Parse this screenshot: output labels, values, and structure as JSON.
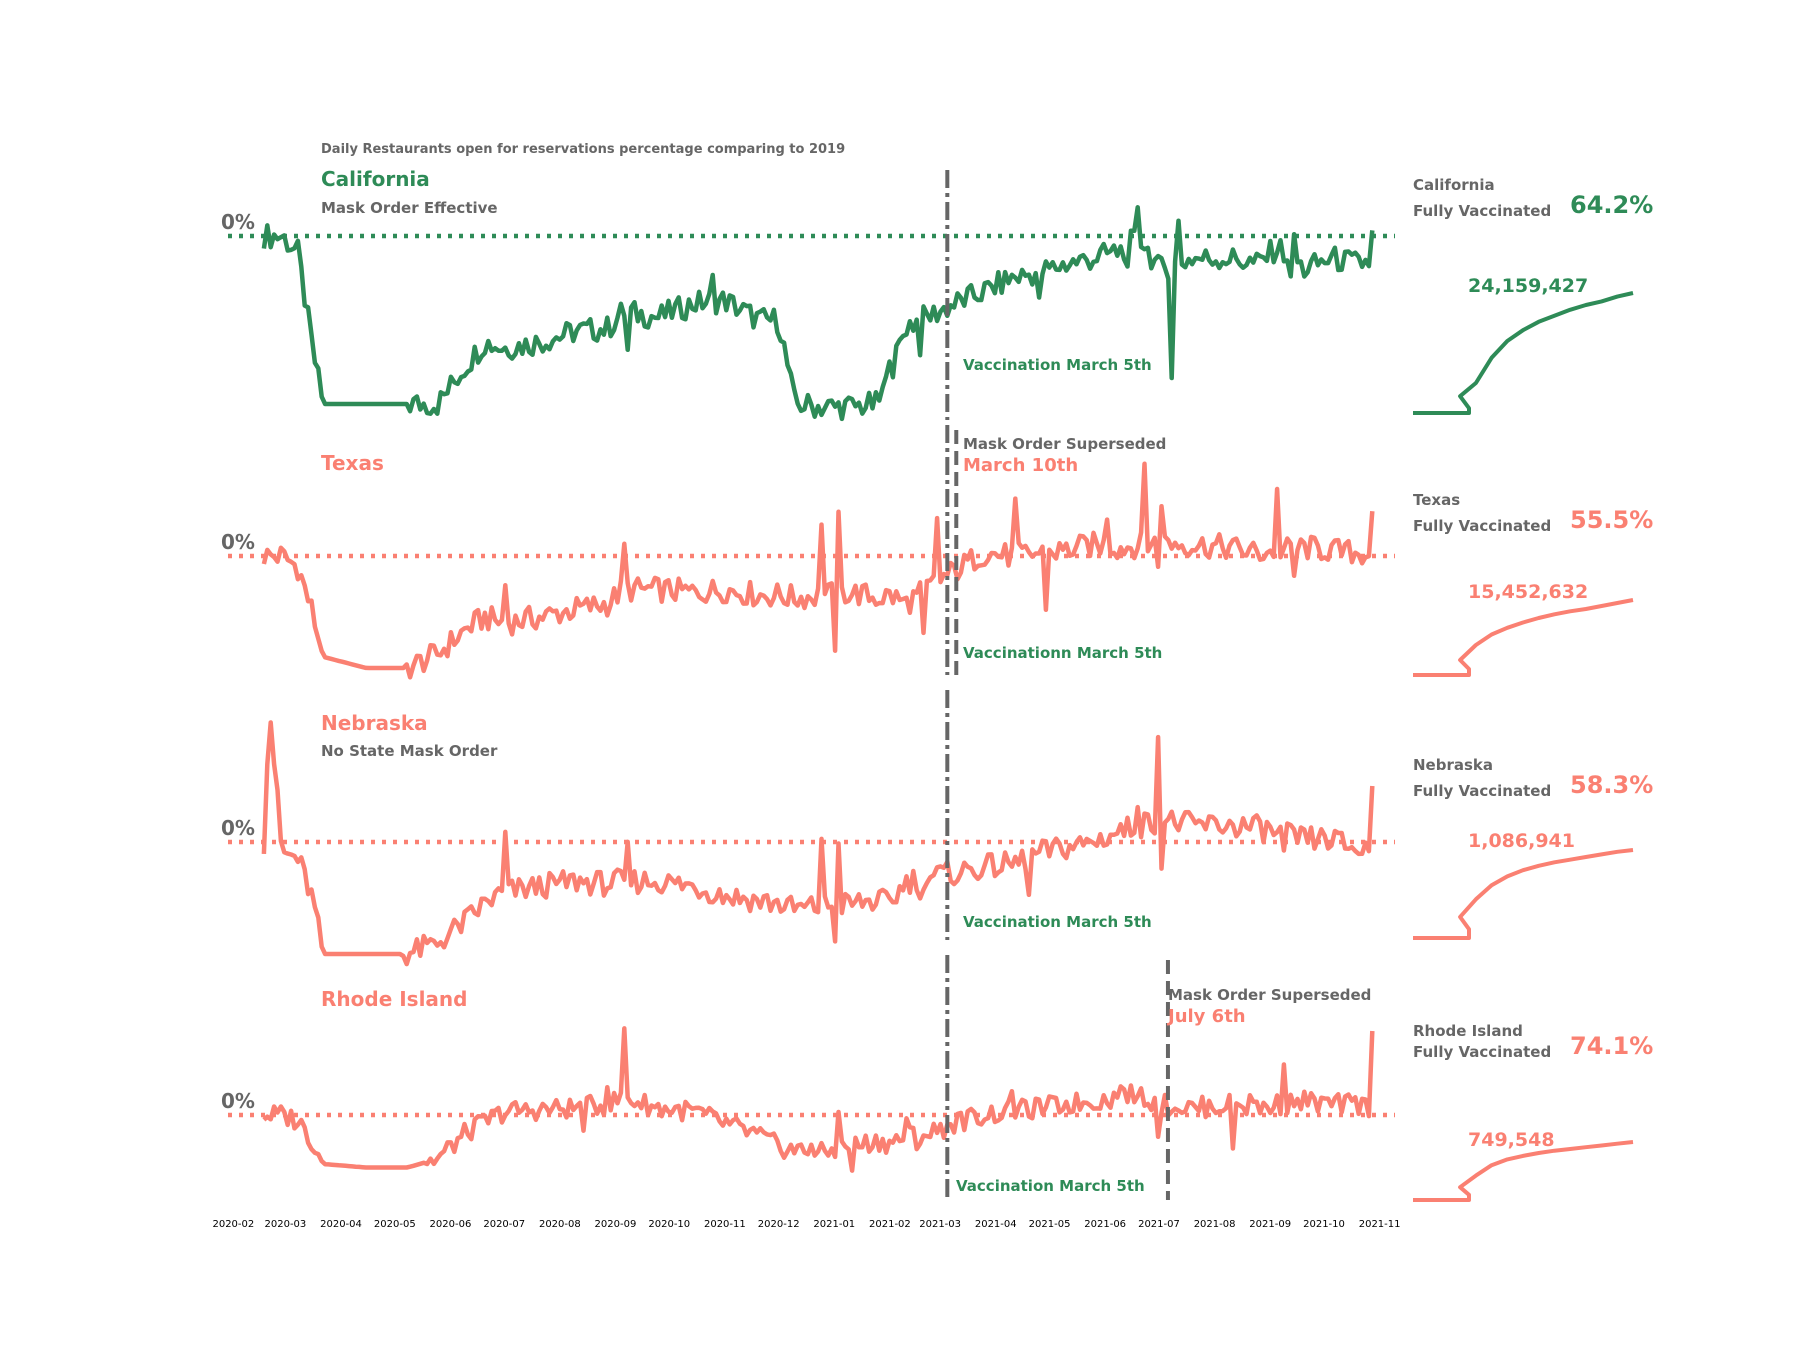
{
  "figure": {
    "title": "Daily Restaurants open for reservations percentage comparing to 2019",
    "colors": {
      "green": "#2e8b57",
      "salmon": "#fa8072",
      "gray": "#666666"
    },
    "zero_label": "0%",
    "x_ticks": [
      "2020-02",
      "2020-03",
      "2020-04",
      "2020-05",
      "2020-06",
      "2020-07",
      "2020-08",
      "2020-09",
      "2020-10",
      "2020-11",
      "2020-12",
      "2021-01",
      "2021-02",
      "2021-03",
      "2021-04",
      "2021-05",
      "2021-06",
      "2021-07",
      "2021-08",
      "2021-09",
      "2021-10",
      "2021-11"
    ]
  },
  "panels": [
    {
      "state": "California",
      "subtitle": "Mask Order Effective",
      "color": "green",
      "vaccination_label": "Vaccination March 5th",
      "superseded_label": "",
      "superseded_date": "",
      "vaccinated_label": "Fully Vaccinated",
      "vaccinated_pct": "64.2%",
      "vaccinated_count": "24,159,427"
    },
    {
      "state": "Texas",
      "subtitle": "",
      "color": "salmon",
      "vaccination_label": "Vaccinationn March 5th",
      "superseded_label": "Mask Order Superseded",
      "superseded_date": "March 10th",
      "vaccinated_label": "Fully Vaccinated",
      "vaccinated_pct": "55.5%",
      "vaccinated_count": "15,452,632"
    },
    {
      "state": "Nebraska",
      "subtitle": "No State Mask Order",
      "color": "salmon",
      "vaccination_label": "Vaccination March 5th",
      "superseded_label": "",
      "superseded_date": "",
      "vaccinated_label": "Fully Vaccinated",
      "vaccinated_pct": "58.3%",
      "vaccinated_count": "1,086,941"
    },
    {
      "state": "Rhode Island",
      "subtitle": "",
      "color": "salmon",
      "vaccination_label": "Vaccination March 5th",
      "superseded_label": "Mask Order Superseded",
      "superseded_date": "July 6th",
      "vaccinated_label": "Fully Vaccinated",
      "vaccinated_pct": "74.1%",
      "vaccinated_count": "749,548"
    }
  ],
  "chart_data": [
    {
      "type": "line",
      "title": "California",
      "ylabel": "0%",
      "vline_dates": [
        "2021-03-05"
      ],
      "series": [
        {
          "x": [
            "2020-02-18",
            "2020-02-28",
            "2020-03-08",
            "2020-03-16",
            "2020-03-22",
            "2020-04-15",
            "2020-05-08",
            "2020-05-25",
            "2020-06-10",
            "2020-06-20",
            "2020-07-01",
            "2020-07-20",
            "2020-08-10",
            "2020-08-28",
            "2020-09-05",
            "2020-09-25",
            "2020-10-15",
            "2020-11-01",
            "2020-11-20",
            "2020-12-01",
            "2020-12-10",
            "2020-12-25",
            "2021-01-10",
            "2021-01-25",
            "2021-02-01",
            "2021-02-10",
            "2021-02-25",
            "2021-03-10",
            "2021-03-25",
            "2021-04-10",
            "2021-04-25",
            "2021-05-10",
            "2021-05-25",
            "2021-06-10",
            "2021-06-20",
            "2021-07-01",
            "2021-07-20",
            "2021-08-10",
            "2021-08-25",
            "2021-09-05",
            "2021-09-20",
            "2021-10-05",
            "2021-10-20",
            "2021-10-27",
            "2021-10-29"
          ],
          "y": [
            0,
            0,
            -6,
            -40,
            -60,
            -60,
            -60,
            -60,
            -46,
            -38,
            -40,
            -38,
            -34,
            -33,
            -27,
            -29,
            -24,
            -23,
            -30,
            -30,
            -60,
            -61,
            -61,
            -60,
            -50,
            -32,
            -28,
            -24,
            -20,
            -15,
            -13,
            -10,
            -8,
            -5,
            0,
            -12,
            -8,
            -8,
            -10,
            -4,
            -12,
            -8,
            -10,
            -9,
            2
          ]
        }
      ]
    },
    {
      "type": "line",
      "title": "Texas",
      "ylabel": "0%",
      "vline_dates": [
        "2021-03-05",
        "2021-03-10"
      ],
      "series": [
        {
          "x": [
            "2020-02-18",
            "2020-02-28",
            "2020-03-08",
            "2020-03-16",
            "2020-03-22",
            "2020-04-15",
            "2020-05-08",
            "2020-05-25",
            "2020-06-10",
            "2020-06-20",
            "2020-07-01",
            "2020-07-20",
            "2020-08-10",
            "2020-08-28",
            "2020-09-05",
            "2020-09-25",
            "2020-10-15",
            "2020-11-01",
            "2020-11-20",
            "2020-12-01",
            "2020-12-10",
            "2020-12-25",
            "2021-01-10",
            "2021-01-25",
            "2021-02-01",
            "2021-02-10",
            "2021-02-25",
            "2021-03-10",
            "2021-03-25",
            "2021-04-10",
            "2021-04-25",
            "2021-05-10",
            "2021-05-25",
            "2021-06-10",
            "2021-06-20",
            "2021-07-01",
            "2021-07-20",
            "2021-08-10",
            "2021-08-25",
            "2021-09-05",
            "2021-09-20",
            "2021-10-05",
            "2021-10-20",
            "2021-10-27",
            "2021-10-29"
          ],
          "y": [
            0,
            0,
            -4,
            -20,
            -36,
            -40,
            -40,
            -35,
            -26,
            -22,
            -24,
            -22,
            -19,
            -17,
            -12,
            -12,
            -13,
            -12,
            -14,
            -14,
            -15,
            -14,
            -13,
            -15,
            -14,
            -17,
            -10,
            -5,
            1,
            0,
            1,
            2,
            4,
            3,
            4,
            5,
            4,
            3,
            1,
            2,
            3,
            2,
            1,
            1,
            16
          ]
        }
      ]
    },
    {
      "type": "line",
      "title": "Nebraska",
      "ylabel": "0%",
      "vline_dates": [
        "2021-03-05"
      ],
      "series": [
        {
          "x": [
            "2020-02-18",
            "2020-02-21",
            "2020-02-28",
            "2020-03-08",
            "2020-03-16",
            "2020-03-22",
            "2020-04-15",
            "2020-05-08",
            "2020-05-25",
            "2020-06-10",
            "2020-06-20",
            "2020-07-01",
            "2020-07-20",
            "2020-08-10",
            "2020-08-28",
            "2020-09-05",
            "2020-09-25",
            "2020-10-15",
            "2020-11-01",
            "2020-11-20",
            "2020-12-01",
            "2020-12-10",
            "2020-12-25",
            "2021-01-10",
            "2021-01-25",
            "2021-02-01",
            "2021-02-10",
            "2021-02-25",
            "2021-03-10",
            "2021-03-25",
            "2021-04-10",
            "2021-04-25",
            "2021-05-10",
            "2021-05-25",
            "2021-06-10",
            "2021-06-20",
            "2021-07-01",
            "2021-07-20",
            "2021-08-10",
            "2021-08-25",
            "2021-09-05",
            "2021-09-20",
            "2021-10-05",
            "2021-10-20",
            "2021-10-27",
            "2021-10-29"
          ],
          "y": [
            0,
            50,
            -4,
            -6,
            -20,
            -40,
            -40,
            -40,
            -36,
            -28,
            -22,
            -18,
            -16,
            -14,
            -15,
            -14,
            -14,
            -16,
            -19,
            -21,
            -22,
            -24,
            -23,
            -22,
            -21,
            -22,
            -14,
            -12,
            -11,
            -9,
            -8,
            -4,
            -2,
            0,
            4,
            6,
            8,
            6,
            6,
            5,
            3,
            1,
            1,
            -3,
            -2,
            20
          ]
        }
      ]
    },
    {
      "type": "line",
      "title": "Rhode Island",
      "ylabel": "0%",
      "vline_dates": [
        "2021-03-05",
        "2021-07-06"
      ],
      "series": [
        {
          "x": [
            "2020-02-18",
            "2020-02-28",
            "2020-03-08",
            "2020-03-16",
            "2020-03-22",
            "2020-04-15",
            "2020-05-08",
            "2020-05-25",
            "2020-06-10",
            "2020-06-20",
            "2020-07-01",
            "2020-07-20",
            "2020-08-10",
            "2020-08-28",
            "2020-09-05",
            "2020-09-25",
            "2020-10-15",
            "2020-11-01",
            "2020-11-20",
            "2020-12-01",
            "2020-12-10",
            "2020-12-25",
            "2021-01-10",
            "2021-01-25",
            "2021-02-01",
            "2021-02-10",
            "2021-02-25",
            "2021-03-10",
            "2021-03-25",
            "2021-04-10",
            "2021-04-25",
            "2021-05-10",
            "2021-05-25",
            "2021-06-10",
            "2021-06-20",
            "2021-07-01",
            "2021-07-20",
            "2021-08-10",
            "2021-08-25",
            "2021-09-05",
            "2021-09-20",
            "2021-10-05",
            "2021-10-20",
            "2021-10-27",
            "2021-10-29"
          ],
          "y": [
            0,
            0,
            -3,
            -15,
            -28,
            -30,
            -30,
            -25,
            -10,
            -4,
            2,
            3,
            4,
            6,
            10,
            4,
            2,
            -5,
            -12,
            -18,
            -20,
            -22,
            -18,
            -15,
            -16,
            -12,
            -10,
            -4,
            0,
            2,
            4,
            6,
            8,
            10,
            12,
            6,
            4,
            6,
            4,
            6,
            8,
            6,
            6,
            5,
            48
          ]
        }
      ]
    },
    {
      "type": "line",
      "title": "Fully Vaccinated",
      "series": [
        {
          "name": "California",
          "values": [
            0,
            0,
            0.04,
            0.14,
            0.25,
            0.46,
            0.6,
            0.69,
            0.76,
            0.81,
            0.86,
            0.9,
            0.93,
            0.97,
            1.0
          ]
        },
        {
          "name": "Texas",
          "values": [
            0,
            0,
            0.08,
            0.2,
            0.4,
            0.54,
            0.63,
            0.7,
            0.76,
            0.81,
            0.85,
            0.88,
            0.92,
            0.96,
            1.0
          ]
        },
        {
          "name": "Nebraska",
          "values": [
            0,
            0,
            0.1,
            0.24,
            0.44,
            0.6,
            0.7,
            0.77,
            0.82,
            0.86,
            0.89,
            0.92,
            0.95,
            0.98,
            1.0
          ]
        },
        {
          "name": "Rhode Island",
          "values": [
            0,
            0,
            0.09,
            0.22,
            0.42,
            0.6,
            0.7,
            0.76,
            0.81,
            0.85,
            0.88,
            0.91,
            0.94,
            0.97,
            1.0
          ]
        }
      ]
    }
  ]
}
